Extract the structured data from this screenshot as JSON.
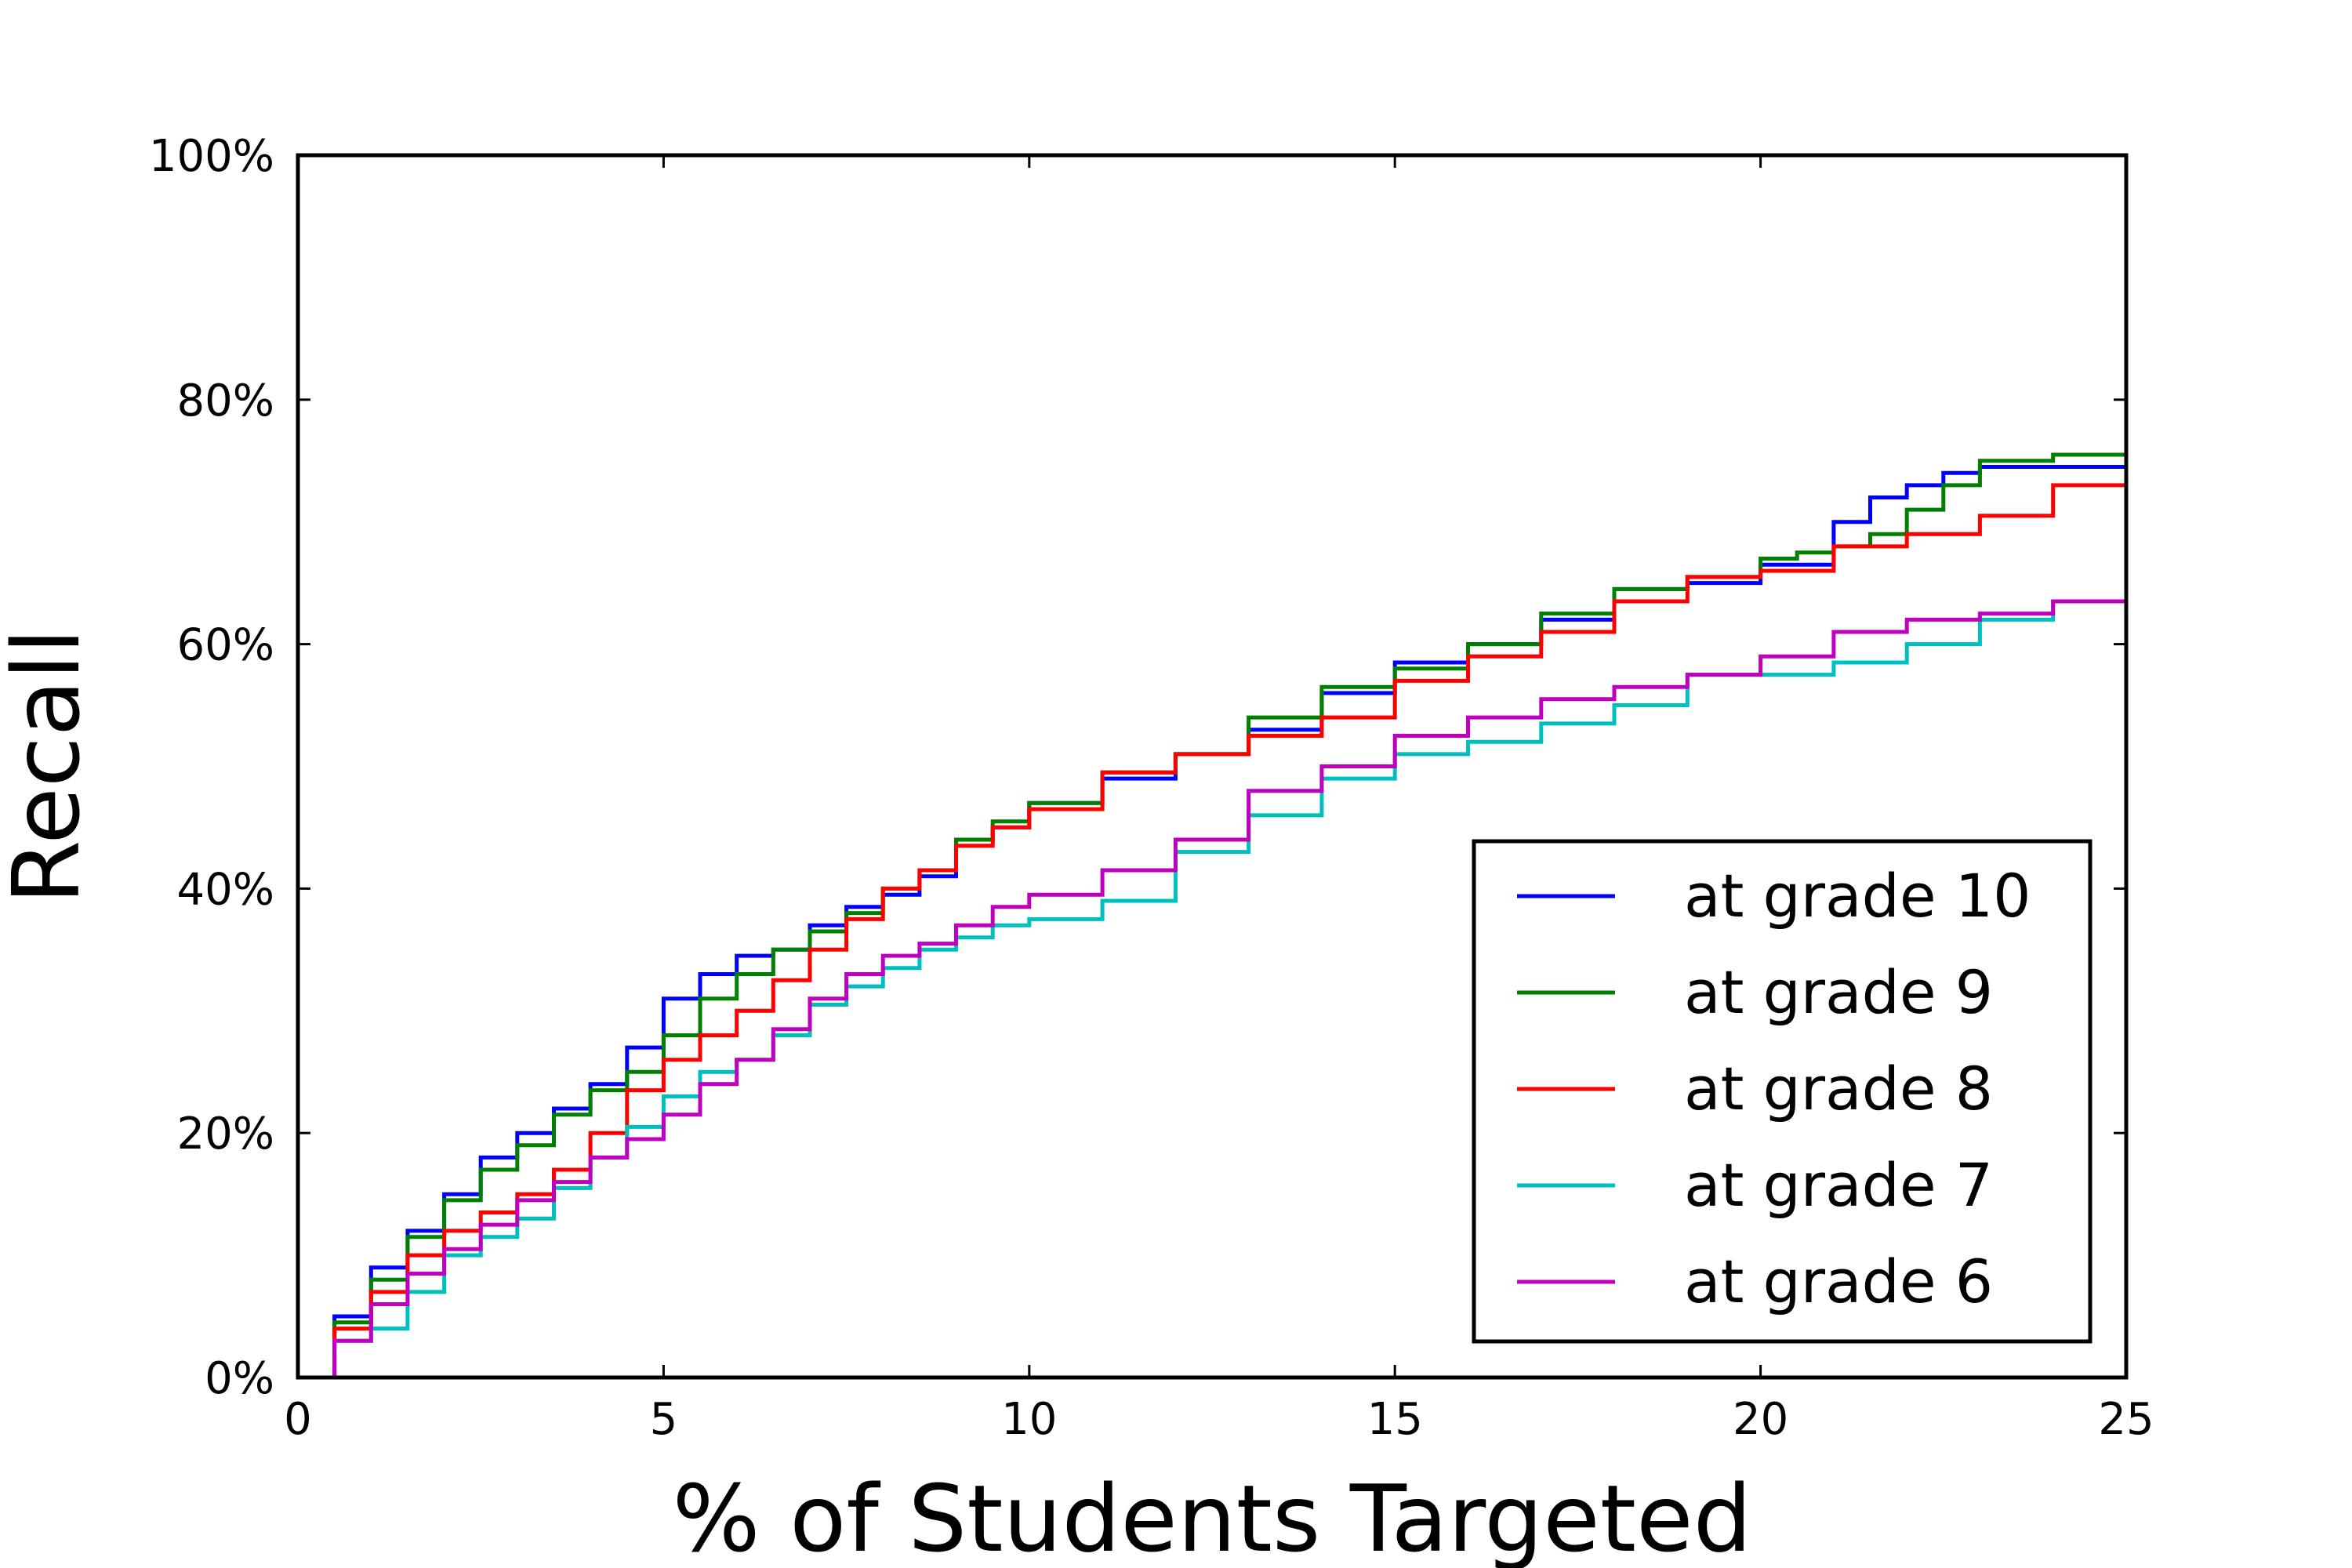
{
  "chart_data": {
    "type": "line",
    "title": "",
    "xlabel": "% of Students Targeted",
    "ylabel": "Recall",
    "xlim": [
      0,
      25
    ],
    "ylim": [
      0,
      100
    ],
    "x_ticks": [
      0,
      5,
      10,
      15,
      20,
      25
    ],
    "x_tick_labels": [
      "0",
      "5",
      "10",
      "15",
      "20",
      "25"
    ],
    "y_ticks": [
      0,
      20,
      40,
      60,
      80,
      100
    ],
    "y_tick_labels": [
      "0%",
      "20%",
      "40%",
      "60%",
      "80%",
      "100%"
    ],
    "grid": false,
    "legend_position": "lower-right",
    "series": [
      {
        "name": "at grade 10",
        "color": "#0000ff",
        "x": [
          0,
          0.5,
          1,
          1.5,
          2,
          2.5,
          3,
          3.5,
          4,
          4.5,
          5,
          5.5,
          6,
          6.5,
          7,
          7.5,
          8,
          8.5,
          9,
          9.5,
          10,
          11,
          12,
          13,
          14,
          15,
          16,
          17,
          18,
          19,
          20,
          20.5,
          21,
          21.5,
          22,
          22.5,
          23,
          24,
          25
        ],
        "y": [
          0,
          5,
          9,
          12,
          15,
          18,
          20,
          22,
          24,
          27,
          31,
          33,
          34.5,
          35,
          37,
          38.5,
          39.5,
          41,
          44,
          45,
          47,
          49,
          51,
          53,
          56,
          58.5,
          60,
          62,
          64.5,
          65,
          66.5,
          66.5,
          70,
          72,
          73,
          74,
          74.5,
          74.5,
          75.5
        ]
      },
      {
        "name": "at grade 9",
        "color": "#008000",
        "x": [
          0,
          0.5,
          1,
          1.5,
          2,
          2.5,
          3,
          3.5,
          4,
          4.5,
          5,
          5.5,
          6,
          6.5,
          7,
          7.5,
          8,
          8.5,
          9,
          9.5,
          10,
          11,
          12,
          13,
          14,
          15,
          16,
          17,
          18,
          19,
          20,
          20.5,
          21,
          21.5,
          22,
          22.5,
          23,
          24,
          25
        ],
        "y": [
          0,
          4.5,
          8,
          11.5,
          14.5,
          17,
          19,
          21.5,
          23.5,
          25,
          28,
          31,
          33,
          35,
          36.5,
          38,
          40,
          41.5,
          44,
          45.5,
          47,
          49.5,
          51,
          54,
          56.5,
          58,
          60,
          62.5,
          64.5,
          65.5,
          67,
          67.5,
          68,
          69,
          71,
          73,
          75,
          75.5,
          76
        ]
      },
      {
        "name": "at grade 8",
        "color": "#ff0000",
        "x": [
          0,
          0.5,
          1,
          1.5,
          2,
          2.5,
          3,
          3.5,
          4,
          4.5,
          5,
          5.5,
          6,
          6.5,
          7,
          7.5,
          8,
          8.5,
          9,
          9.5,
          10,
          11,
          12,
          13,
          14,
          15,
          16,
          17,
          18,
          19,
          20,
          21,
          22,
          23,
          24,
          25
        ],
        "y": [
          0,
          4,
          7,
          10,
          12,
          13.5,
          15,
          17,
          20,
          23.5,
          26,
          28,
          30,
          32.5,
          35,
          37.5,
          40,
          41.5,
          43.5,
          45,
          46.5,
          49.5,
          51,
          52.5,
          54,
          57,
          59,
          61,
          63.5,
          65.5,
          66,
          68,
          69,
          70.5,
          73,
          75
        ]
      },
      {
        "name": "at grade 7",
        "color": "#00bfbf",
        "x": [
          0,
          0.5,
          1,
          1.5,
          2,
          2.5,
          3,
          3.5,
          4,
          4.5,
          5,
          5.5,
          6,
          6.5,
          7,
          7.5,
          8,
          8.5,
          9,
          9.5,
          10,
          11,
          12,
          13,
          14,
          15,
          16,
          17,
          18,
          19,
          20,
          21,
          22,
          23,
          24,
          25
        ],
        "y": [
          0,
          3,
          4,
          7,
          10,
          11.5,
          13,
          15.5,
          18,
          20.5,
          23,
          25,
          26,
          28,
          30.5,
          32,
          33.5,
          35,
          36,
          37,
          37.5,
          39,
          43,
          46,
          49,
          51,
          52,
          53.5,
          55,
          57.5,
          57.5,
          58.5,
          60,
          62,
          63.5,
          63.5
        ]
      },
      {
        "name": "at grade 6",
        "color": "#bf00bf",
        "x": [
          0,
          0.5,
          1,
          1.5,
          2,
          2.5,
          3,
          3.5,
          4,
          4.5,
          5,
          5.5,
          6,
          6.5,
          7,
          7.5,
          8,
          8.5,
          9,
          9.5,
          10,
          11,
          12,
          13,
          14,
          15,
          16,
          17,
          18,
          19,
          20,
          21,
          22,
          23,
          24,
          25
        ],
        "y": [
          0,
          3,
          6,
          8.5,
          10.5,
          12.5,
          14.5,
          16,
          18,
          19.5,
          21.5,
          24,
          26,
          28.5,
          31,
          33,
          34.5,
          35.5,
          37,
          38.5,
          39.5,
          41.5,
          44,
          48,
          50,
          52.5,
          54,
          55.5,
          56.5,
          57.5,
          59,
          61,
          62,
          62.5,
          63.5,
          64.5
        ]
      }
    ]
  }
}
